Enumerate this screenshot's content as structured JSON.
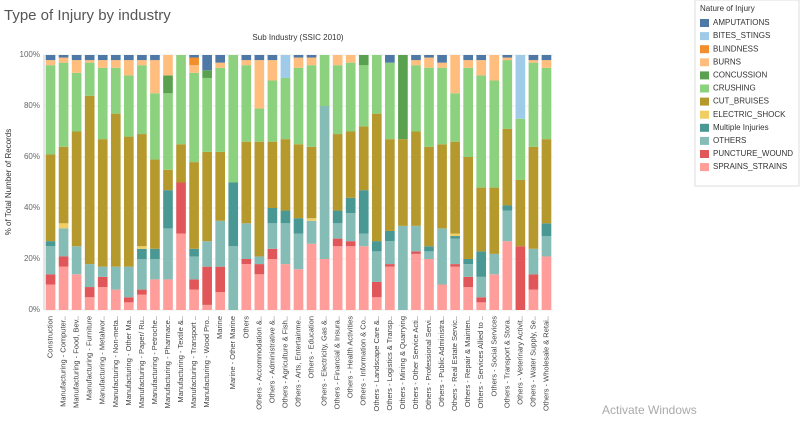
{
  "chart_data": {
    "type": "bar",
    "stacked": true,
    "title": "Type of Injury by industry",
    "subtitle": "Sub Industry  (SSIC 2010)",
    "y_label": "% of Total Number of Records",
    "legend_title": "Nature of Injury",
    "watermark": "Activate Windows",
    "legend": "right",
    "grid": true,
    "ylim": [
      0,
      100
    ],
    "yticks": [
      {
        "value": 0,
        "label": "0%"
      },
      {
        "value": 20,
        "label": "20%"
      },
      {
        "value": 40,
        "label": "40%"
      },
      {
        "value": 60,
        "label": "60%"
      },
      {
        "value": 80,
        "label": "80%"
      },
      {
        "value": 100,
        "label": "100%"
      }
    ],
    "categories": [
      "Construction",
      "Manufacturing - Computer..",
      "Manufacturing - Food, Bev..",
      "Manufacturing - Furniture",
      "Manufacturing - Metalwor..",
      "Manufacturing - Non-meta..",
      "Manufacturing - Other Ma..",
      "Manufacturing - Paper/ Ru..",
      "Manufacturing - Petroche..",
      "Manufacturing - Pharmace..",
      "Manufacturing - Textile &..",
      "Manufacturing - Transport ..",
      "Manufacturing - Wood Pro..",
      "Marine",
      "Marine - Other Marine",
      "Others",
      "Others - Accommodation &..",
      "Others - Administrative &..",
      "Others - Agriculture & Fish..",
      "Others - Arts, Entertainme..",
      "Others - Education",
      "Others - Electricity, Gas &..",
      "Others - Financial & Insura..",
      "Others - Health Activities",
      "Others - Information & Co..",
      "Others - Landscape Care &..",
      "Others - Logistics & Transp..",
      "Others - Mining & Quarrying",
      "Others - Other Service Acti..",
      "Others - Professional Servi..",
      "Others - Public Administra..",
      "Others - Real Estate Servic..",
      "Others - Repair & Mainten..",
      "Others - Services Allied to ..",
      "Others - Social Services",
      "Others - Transport & Stora..",
      "Others - Veterinary Activit..",
      "Others - Water Supply, Se..",
      "Others - Wholesale & Retai.."
    ],
    "series": [
      {
        "name": "AMPUTATIONS",
        "color": "#4e79a7",
        "values": [
          2,
          1,
          2,
          2,
          2,
          2,
          2,
          2,
          2,
          0,
          0,
          1,
          6,
          3,
          0,
          2,
          2,
          2,
          0,
          1,
          1,
          0,
          0,
          0,
          0,
          0,
          3,
          0,
          2,
          1,
          3,
          0,
          2,
          2,
          0,
          1,
          0,
          2,
          2
        ]
      },
      {
        "name": "BITES_STINGS",
        "color": "#a0cbe8",
        "values": [
          0,
          0,
          0,
          0,
          0,
          0,
          0,
          0,
          0,
          0,
          0,
          0,
          0,
          0,
          0,
          0,
          0,
          0,
          9,
          0,
          0,
          0,
          0,
          0,
          0,
          0,
          0,
          0,
          0,
          0,
          0,
          0,
          0,
          0,
          0,
          0,
          25,
          0,
          0
        ]
      },
      {
        "name": "BLINDNESS",
        "color": "#f28e2b",
        "values": [
          0,
          0,
          0,
          0,
          0,
          0,
          0,
          0,
          0,
          0,
          0,
          3,
          0,
          0,
          0,
          0,
          0,
          0,
          0,
          0,
          0,
          0,
          0,
          0,
          0,
          0,
          0,
          0,
          0,
          0,
          0,
          0,
          0,
          0,
          0,
          0,
          0,
          0,
          0
        ]
      },
      {
        "name": "BURNS",
        "color": "#ffbe7d",
        "values": [
          2,
          2,
          5,
          1,
          3,
          3,
          6,
          2,
          13,
          8,
          0,
          3,
          0,
          2,
          0,
          2,
          19,
          8,
          0,
          4,
          3,
          0,
          4,
          3,
          0,
          0,
          0,
          0,
          2,
          4,
          2,
          15,
          3,
          6,
          10,
          1,
          0,
          1,
          3
        ]
      },
      {
        "name": "CONCUSSION",
        "color": "#59a14f",
        "values": [
          0,
          0,
          0,
          0,
          0,
          0,
          0,
          0,
          0,
          7,
          0,
          0,
          3,
          0,
          0,
          0,
          0,
          0,
          0,
          0,
          0,
          0,
          0,
          0,
          4,
          0,
          0,
          33,
          0,
          0,
          0,
          0,
          0,
          0,
          0,
          0,
          0,
          0,
          0
        ]
      },
      {
        "name": "CRUSHING",
        "color": "#8cd17d",
        "values": [
          35,
          33,
          23,
          13,
          28,
          18,
          24,
          27,
          26,
          30,
          35,
          35,
          29,
          33,
          50,
          30,
          13,
          24,
          24,
          30,
          32,
          20,
          27,
          27,
          24,
          23,
          30,
          0,
          26,
          31,
          30,
          19,
          35,
          44,
          42,
          27,
          24,
          33,
          28
        ]
      },
      {
        "name": "CUT_BRUISES",
        "color": "#b6992d",
        "values": [
          34,
          30,
          45,
          66,
          50,
          60,
          51,
          44,
          35,
          8,
          15,
          34,
          35,
          27,
          0,
          32,
          45,
          26,
          28,
          29,
          28,
          0,
          30,
          26,
          25,
          50,
          36,
          34,
          37,
          39,
          33,
          36,
          40,
          25,
          26,
          30,
          26,
          40,
          33
        ]
      },
      {
        "name": "ELECTRIC_SHOCK",
        "color": "#f1ce63",
        "values": [
          0,
          2,
          0,
          0,
          0,
          0,
          0,
          1,
          0,
          0,
          0,
          0,
          0,
          0,
          0,
          0,
          0,
          0,
          0,
          0,
          1,
          0,
          0,
          0,
          0,
          0,
          0,
          0,
          0,
          0,
          0,
          1,
          0,
          0,
          0,
          0,
          0,
          0,
          0
        ]
      },
      {
        "name": "Multiple Injuries",
        "color": "#499894",
        "values": [
          2,
          0,
          0,
          0,
          0,
          0,
          0,
          4,
          4,
          15,
          0,
          3,
          0,
          0,
          25,
          0,
          0,
          6,
          5,
          6,
          0,
          0,
          5,
          6,
          17,
          4,
          4,
          0,
          0,
          2,
          0,
          1,
          2,
          10,
          0,
          2,
          0,
          0,
          5
        ]
      },
      {
        "name": "OTHERS",
        "color": "#86bcb6",
        "values": [
          11,
          11,
          11,
          9,
          4,
          9,
          12,
          12,
          8,
          20,
          0,
          9,
          10,
          18,
          25,
          14,
          3,
          10,
          16,
          14,
          9,
          60,
          6,
          11,
          5,
          12,
          9,
          33,
          10,
          3,
          22,
          10,
          5,
          8,
          8,
          12,
          0,
          10,
          8
        ]
      },
      {
        "name": "PUNCTURE_WOUND",
        "color": "#e15759",
        "values": [
          4,
          4,
          0,
          4,
          4,
          0,
          2,
          2,
          0,
          0,
          20,
          4,
          15,
          10,
          0,
          2,
          4,
          4,
          0,
          0,
          0,
          0,
          3,
          2,
          0,
          6,
          1,
          0,
          1,
          0,
          0,
          1,
          4,
          2,
          0,
          0,
          25,
          6,
          0
        ]
      },
      {
        "name": "SPRAINS_STRAINS",
        "color": "#ff9d9a",
        "values": [
          10,
          17,
          14,
          5,
          9,
          8,
          3,
          6,
          12,
          12,
          30,
          8,
          2,
          7,
          0,
          18,
          14,
          20,
          18,
          16,
          26,
          20,
          25,
          25,
          25,
          5,
          17,
          0,
          22,
          20,
          10,
          17,
          9,
          3,
          14,
          27,
          0,
          8,
          21
        ]
      }
    ]
  }
}
